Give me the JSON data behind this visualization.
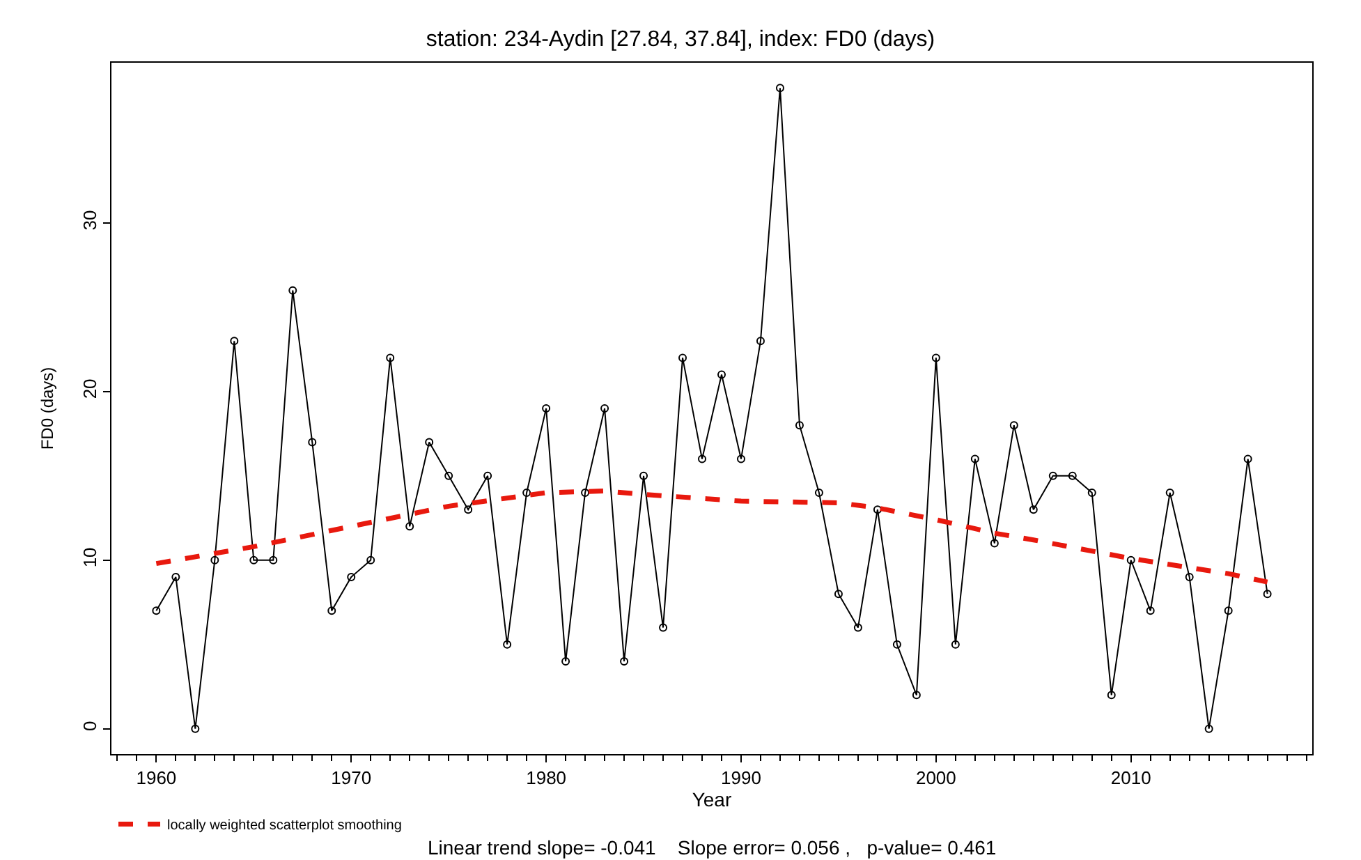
{
  "chart_data": {
    "type": "line",
    "title": "station: 234-Aydin [27.84, 37.84], index: FD0 (days)",
    "xlabel": "Year",
    "ylabel": "FD0 (days)",
    "x": [
      1960,
      1961,
      1962,
      1963,
      1964,
      1965,
      1966,
      1967,
      1968,
      1969,
      1970,
      1971,
      1972,
      1973,
      1974,
      1975,
      1976,
      1977,
      1978,
      1979,
      1980,
      1981,
      1982,
      1983,
      1984,
      1985,
      1986,
      1987,
      1988,
      1989,
      1990,
      1991,
      1992,
      1993,
      1994,
      1995,
      1996,
      1997,
      1998,
      1999,
      2000,
      2001,
      2002,
      2003,
      2004,
      2005,
      2006,
      2007,
      2008,
      2009,
      2010,
      2011,
      2012,
      2013,
      2014,
      2015,
      2016,
      2017
    ],
    "series": [
      {
        "color": "#000000",
        "marker": "circle",
        "line_style": "solid",
        "values": [
          7,
          9,
          0,
          10,
          23,
          10,
          10,
          26,
          17,
          7,
          9,
          10,
          22,
          12,
          17,
          15,
          13,
          15,
          5,
          14,
          19,
          4,
          14,
          19,
          4,
          15,
          6,
          22,
          16,
          21,
          16,
          23,
          38,
          18,
          14,
          8,
          6,
          13,
          5,
          2,
          22,
          5,
          16,
          11,
          18,
          13,
          15,
          15,
          14,
          2,
          10,
          7,
          14,
          9,
          0,
          7,
          16,
          8
        ]
      },
      {
        "name": "locally weighted scatterplot smoothing",
        "color": "#e8190e",
        "marker": "none",
        "line_style": "dashed",
        "x": [
          1960,
          1965,
          1970,
          1975,
          1980,
          1983,
          1985,
          1990,
          1995,
          1997,
          2000,
          2003,
          2005,
          2010,
          2015,
          2017
        ],
        "values": [
          9.8,
          10.8,
          12.0,
          13.2,
          14.0,
          14.1,
          13.9,
          13.5,
          13.4,
          13.1,
          12.4,
          11.6,
          11.2,
          10.1,
          9.2,
          8.7
        ]
      }
    ],
    "xlim": [
      1957.7,
      2019.3
    ],
    "xticks": [
      1960,
      1970,
      1980,
      1990,
      2000,
      2010
    ],
    "ylim": [
      -1.5,
      39.5
    ],
    "yticks": [
      0,
      10,
      20,
      30
    ],
    "legend": "bottom left",
    "annotations": [
      "Linear trend slope= -0.041    Slope error= 0.056 ,   p-value= 0.461"
    ]
  }
}
